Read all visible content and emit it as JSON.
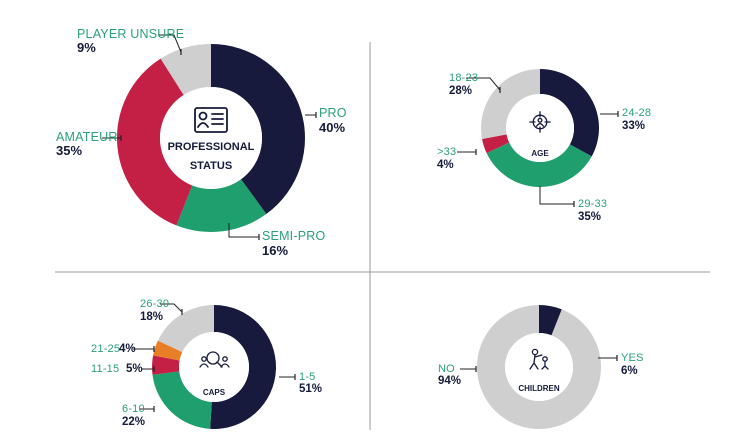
{
  "colors": {
    "navy": "#171a3d",
    "green": "#1f9e6e",
    "red": "#c41f45",
    "gray": "#cfcfcf",
    "orange": "#e97e26",
    "label_teal": "#2aa07a",
    "divider": "#9a9a9a"
  },
  "chart_data": [
    {
      "id": "professional",
      "type": "pie",
      "center_lines": [
        "PROFESSIONAL",
        "STATUS"
      ],
      "center_icon": "id-card-icon",
      "slices": [
        {
          "label": "PRO",
          "value": 40,
          "display": "40%",
          "color": "#171a3d"
        },
        {
          "label": "SEMI-PRO",
          "value": 16,
          "display": "16%",
          "color": "#1f9e6e"
        },
        {
          "label": "AMATEUR",
          "value": 35,
          "display": "35%",
          "color": "#c41f45"
        },
        {
          "label": "PLAYER UNSURE",
          "value": 9,
          "display": "9%",
          "color": "#cfcfcf"
        }
      ]
    },
    {
      "id": "age",
      "type": "pie",
      "center_lines": [
        "AGE"
      ],
      "center_icon": "target-person-icon",
      "slices": [
        {
          "label": "24-28",
          "value": 33,
          "display": "33%",
          "color": "#171a3d"
        },
        {
          "label": "29-33",
          "value": 35,
          "display": "35%",
          "color": "#1f9e6e"
        },
        {
          "label": ">33",
          "value": 4,
          "display": "4%",
          "color": "#c41f45"
        },
        {
          "label": "18-23",
          "value": 28,
          "display": "28%",
          "color": "#cfcfcf"
        }
      ]
    },
    {
      "id": "caps",
      "type": "pie",
      "center_lines": [
        "CAPS"
      ],
      "center_icon": "search-people-icon",
      "slices": [
        {
          "label": "1-5",
          "value": 51,
          "display": "51%",
          "color": "#171a3d"
        },
        {
          "label": "6-10",
          "value": 22,
          "display": "22%",
          "color": "#1f9e6e"
        },
        {
          "label": "11-15",
          "value": 5,
          "display": "5%",
          "color": "#c41f45"
        },
        {
          "label": "21-25",
          "value": 4,
          "display": "4%",
          "color": "#e97e26"
        },
        {
          "label": "26-30",
          "value": 18,
          "display": "18%",
          "color": "#cfcfcf"
        }
      ]
    },
    {
      "id": "children",
      "type": "pie",
      "center_lines": [
        "CHILDREN"
      ],
      "center_icon": "parent-child-icon",
      "slices": [
        {
          "label": "YES",
          "value": 6,
          "display": "6%",
          "color": "#171a3d"
        },
        {
          "label": "NO",
          "value": 94,
          "display": "94%",
          "color": "#cfcfcf"
        }
      ]
    }
  ]
}
